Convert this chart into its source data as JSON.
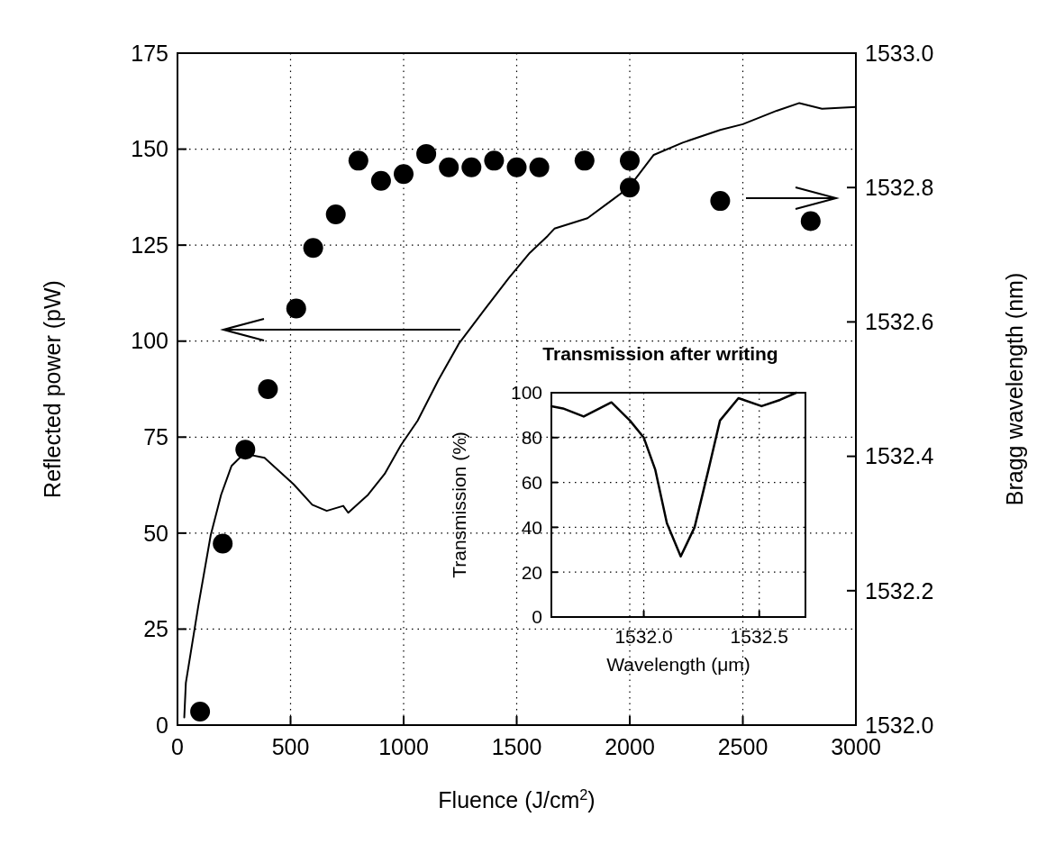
{
  "chart_data": [
    {
      "type": "line",
      "xlabel": "Fluence (J/cm$^{2}$)",
      "ylabel": "Reflected power (pW)",
      "y2label": "Bragg wavelength (nm)",
      "xlim": [
        0,
        3000
      ],
      "xticks": [
        0,
        500,
        1000,
        1500,
        2000,
        2500,
        3000
      ],
      "ylim": [
        0,
        175
      ],
      "yticks": [
        0,
        25,
        50,
        75,
        100,
        125,
        150,
        175
      ],
      "y2lim": [
        1532,
        1533
      ],
      "y2ticks": [
        {
          "value": 1532,
          "label": "1532.0"
        },
        {
          "value": 1532.2,
          "label": "1532.2"
        },
        {
          "value": 1532.4,
          "label": "1532.4"
        },
        {
          "value": 1532.6,
          "label": "1532.6"
        },
        {
          "value": 1532.8,
          "label": "1532.8"
        },
        {
          "value": 1533,
          "label": "1533.0"
        }
      ],
      "grid": true,
      "series": [
        {
          "color": "#000000",
          "axis": "y",
          "x": [
            30,
            37,
            92,
            147,
            193,
            239,
            294,
            385,
            514,
            596,
            660,
            733,
            755,
            843,
            916,
            988,
            1062,
            1154,
            1246,
            1355,
            1466,
            1558,
            1637,
            1667,
            1813,
            1923,
            1996,
            2106,
            2234,
            2400,
            2500,
            2650,
            2750,
            2850,
            3000
          ],
          "values": [
            2,
            11,
            31,
            49.5,
            60,
            67.5,
            70.7,
            69.6,
            62.7,
            57.4,
            55.8,
            57.1,
            55.3,
            60,
            65.4,
            72.9,
            79.3,
            89.9,
            99.5,
            108,
            116.5,
            123,
            127.4,
            129.3,
            132,
            136.8,
            140,
            148.5,
            151.7,
            155,
            156.5,
            160,
            162,
            160.5,
            161
          ]
        },
        {
          "type": "scatter",
          "color": "#000000",
          "axis": "y2",
          "marker": "circle",
          "x": [
            100,
            200,
            300,
            400,
            525,
            600,
            700,
            800,
            900,
            1000,
            1100,
            1200,
            1300,
            1400,
            1500,
            1600,
            1800,
            2000,
            2000,
            2400,
            2800
          ],
          "values": [
            1532.02,
            1532.27,
            1532.41,
            1532.5,
            1532.62,
            1532.71,
            1532.76,
            1532.84,
            1532.81,
            1532.82,
            1532.85,
            1532.83,
            1532.83,
            1532.84,
            1532.83,
            1532.83,
            1532.84,
            1532.84,
            1532.8,
            1532.78,
            1532.75
          ]
        }
      ]
    },
    {
      "type": "line",
      "title": "Transmission after writing",
      "xlabel": "Wavelength (μm)",
      "ylabel": "Transmission (%)",
      "xlim": [
        1531.6,
        1532.7
      ],
      "xticks": [
        {
          "value": 1532,
          "label": "1532.0"
        },
        {
          "value": 1532.5,
          "label": "1532.5"
        }
      ],
      "ylim": [
        0,
        100
      ],
      "yticks": [
        0,
        20,
        40,
        60,
        80,
        100
      ],
      "grid": true,
      "series": [
        {
          "color": "#000000",
          "x": [
            1531.6,
            1531.65,
            1531.74,
            1531.86,
            1531.94,
            1532,
            1532.05,
            1532.1,
            1532.16,
            1532.22,
            1532.28,
            1532.33,
            1532.41,
            1532.51,
            1532.59,
            1532.66
          ],
          "values": [
            94,
            93,
            89.4,
            95.7,
            87.6,
            80,
            65.6,
            41.9,
            27,
            40,
            65.6,
            87.6,
            97.6,
            94,
            96.8,
            100
          ]
        }
      ]
    }
  ]
}
